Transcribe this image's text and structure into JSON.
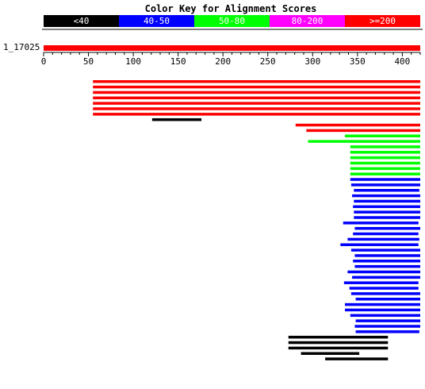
{
  "title": "Color Key for Alignment Scores",
  "colors": {
    "lt40": "#000000",
    "s40_50": "#0000ff",
    "s50_80": "#00ff00",
    "s80_200": "#ff00ff",
    "gte200": "#ff0000",
    "key_text": "#ffffff",
    "axis": "#000000"
  },
  "key": [
    {
      "label": "<40",
      "color": "#000000"
    },
    {
      "label": "40-50",
      "color": "#0000ff"
    },
    {
      "label": "50-80",
      "color": "#00ff00"
    },
    {
      "label": "80-200",
      "color": "#ff00ff"
    },
    {
      "label": ">=200",
      "color": "#ff0000"
    }
  ],
  "query": {
    "label": "1_17025",
    "length": 420
  },
  "axis": {
    "min": 0,
    "max": 420,
    "ticks": [
      0,
      50,
      100,
      150,
      200,
      250,
      300,
      350,
      400
    ]
  },
  "chart_data": {
    "type": "alignment",
    "query_length": 420,
    "hits": [
      {
        "start": 55,
        "end": 420,
        "score": ">=200"
      },
      {
        "start": 55,
        "end": 420,
        "score": ">=200"
      },
      {
        "start": 55,
        "end": 420,
        "score": ">=200"
      },
      {
        "start": 55,
        "end": 420,
        "score": ">=200"
      },
      {
        "start": 55,
        "end": 420,
        "score": ">=200"
      },
      {
        "start": 55,
        "end": 420,
        "score": ">=200"
      },
      {
        "start": 55,
        "end": 420,
        "score": ">=200"
      },
      {
        "start": 121,
        "end": 176,
        "score": "<40"
      },
      {
        "start": 281,
        "end": 420,
        "score": ">=200"
      },
      {
        "start": 293,
        "end": 420,
        "score": ">=200"
      },
      {
        "start": 336,
        "end": 420,
        "score": "50-80"
      },
      {
        "start": 295,
        "end": 420,
        "score": "50-80"
      },
      {
        "start": 342,
        "end": 420,
        "score": "50-80"
      },
      {
        "start": 342,
        "end": 420,
        "score": "50-80"
      },
      {
        "start": 342,
        "end": 420,
        "score": "50-80"
      },
      {
        "start": 342,
        "end": 420,
        "score": "50-80"
      },
      {
        "start": 342,
        "end": 420,
        "score": "50-80"
      },
      {
        "start": 342,
        "end": 420,
        "score": "50-80"
      },
      {
        "start": 342,
        "end": 420,
        "score": "40-50"
      },
      {
        "start": 343,
        "end": 420,
        "score": "40-50"
      },
      {
        "start": 346,
        "end": 419,
        "score": "40-50"
      },
      {
        "start": 344,
        "end": 420,
        "score": "40-50"
      },
      {
        "start": 346,
        "end": 420,
        "score": "40-50"
      },
      {
        "start": 345,
        "end": 420,
        "score": "40-50"
      },
      {
        "start": 346,
        "end": 420,
        "score": "40-50"
      },
      {
        "start": 346,
        "end": 420,
        "score": "40-50"
      },
      {
        "start": 334,
        "end": 418,
        "score": "40-50"
      },
      {
        "start": 347,
        "end": 420,
        "score": "40-50"
      },
      {
        "start": 345,
        "end": 418,
        "score": "40-50"
      },
      {
        "start": 339,
        "end": 419,
        "score": "40-50"
      },
      {
        "start": 331,
        "end": 418,
        "score": "40-50"
      },
      {
        "start": 343,
        "end": 420,
        "score": "40-50"
      },
      {
        "start": 347,
        "end": 420,
        "score": "40-50"
      },
      {
        "start": 345,
        "end": 420,
        "score": "40-50"
      },
      {
        "start": 347,
        "end": 420,
        "score": "40-50"
      },
      {
        "start": 339,
        "end": 420,
        "score": "40-50"
      },
      {
        "start": 344,
        "end": 420,
        "score": "40-50"
      },
      {
        "start": 335,
        "end": 418,
        "score": "40-50"
      },
      {
        "start": 341,
        "end": 418,
        "score": "40-50"
      },
      {
        "start": 343,
        "end": 420,
        "score": "40-50"
      },
      {
        "start": 348,
        "end": 420,
        "score": "40-50"
      },
      {
        "start": 336,
        "end": 420,
        "score": "40-50"
      },
      {
        "start": 336,
        "end": 420,
        "score": "40-50"
      },
      {
        "start": 342,
        "end": 420,
        "score": "40-50"
      },
      {
        "start": 348,
        "end": 420,
        "score": "40-50"
      },
      {
        "start": 347,
        "end": 420,
        "score": "40-50"
      },
      {
        "start": 348,
        "end": 419,
        "score": "40-50"
      },
      {
        "start": 273,
        "end": 384,
        "score": "<40"
      },
      {
        "start": 273,
        "end": 384,
        "score": "<40"
      },
      {
        "start": 273,
        "end": 384,
        "score": "<40"
      },
      {
        "start": 287,
        "end": 352,
        "score": "<40"
      },
      {
        "start": 314,
        "end": 384,
        "score": "<40"
      }
    ]
  }
}
